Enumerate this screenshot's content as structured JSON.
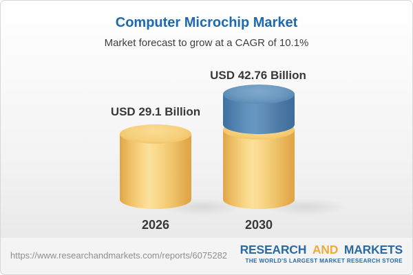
{
  "header": {
    "title": "Computer Microchip Market",
    "subtitle": "Market forecast to grow at a CAGR of 10.1%"
  },
  "chart_data": {
    "type": "bar",
    "variant": "3d-cylinder-stacked",
    "title": "Computer Microchip Market",
    "subtitle": "Market forecast to grow at a CAGR of 10.1%",
    "unit": "USD Billion",
    "cagr_percent": 10.1,
    "categories": [
      "2026",
      "2030"
    ],
    "values": [
      29.1,
      42.76
    ],
    "value_labels": [
      "USD 29.1 Billion",
      "USD 42.76 Billion"
    ],
    "legend": "none",
    "grid": false,
    "colors": {
      "base_segment": "#f3cb74",
      "growth_segment": "#4b7fac",
      "label_text": "#383838"
    }
  },
  "footer": {
    "url": "https://www.researchandmarkets.com/reports/6075282",
    "logo": {
      "research": "RESEARCH",
      "and": "AND",
      "markets": "MARKETS",
      "tagline": "THE WORLD'S LARGEST MARKET RESEARCH STORE"
    },
    "colors": {
      "logo_blue": "#2a6aa5",
      "logo_gold": "#f0a93b"
    }
  }
}
